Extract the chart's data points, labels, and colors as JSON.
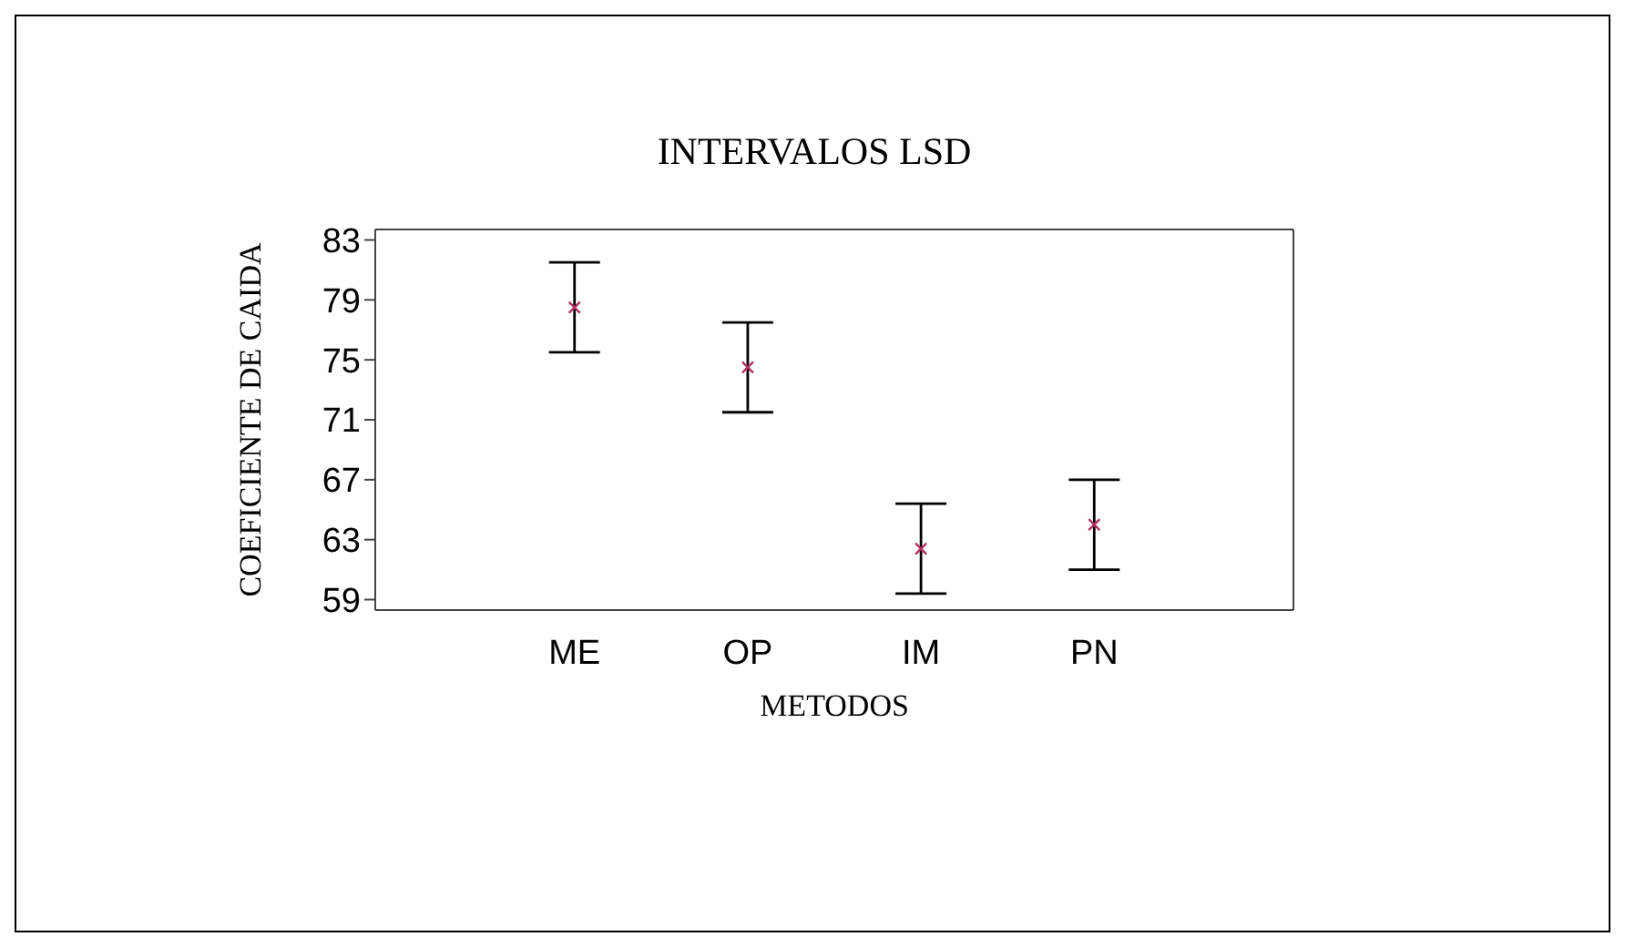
{
  "chart_data": {
    "type": "scatter",
    "title": "INTERVALOS LSD",
    "xlabel": "METODOS",
    "ylabel": "COEFICIENTE DE CAIDA",
    "categories": [
      "ME",
      "OP",
      "IM",
      "PN"
    ],
    "series": [
      {
        "color": "#b03060",
        "values": [
          78.5,
          74.5,
          62.4,
          64.0
        ],
        "errors": [
          3.0,
          3.0,
          3.0,
          3.0
        ]
      }
    ],
    "ylim": [
      58.3,
      83.7
    ],
    "yticks": [
      59,
      63,
      67,
      71,
      75,
      79,
      83
    ],
    "marker": "cross"
  }
}
